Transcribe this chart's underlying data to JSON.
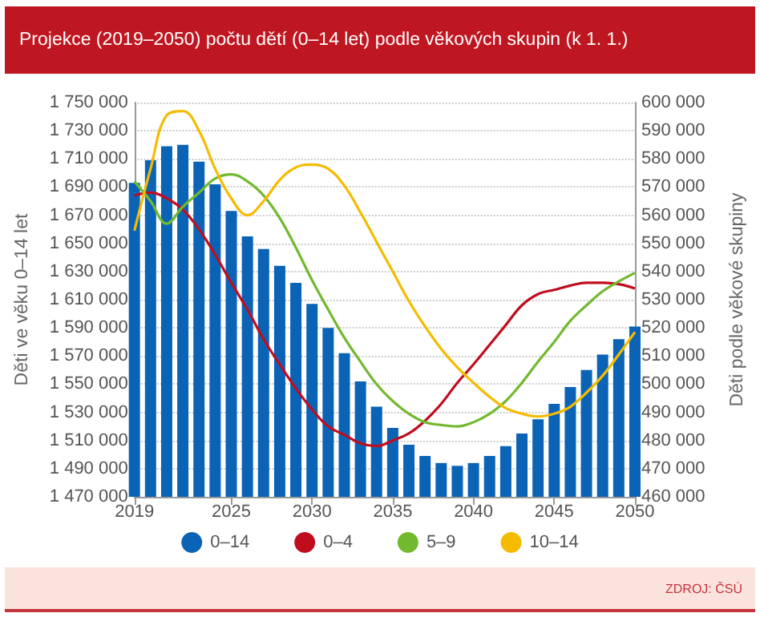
{
  "chart_data": {
    "type": "bar",
    "title": "Projekce (2019–2050) počtu dětí (0–14 let) podle věkových skupin (k 1. 1.)",
    "annotations": [
      "ZDROJ: ČSÚ"
    ],
    "ylabel": "Děti ve věku 0–14 let",
    "y2label": "Děti podle věkové skupiny",
    "x": [
      2019,
      2020,
      2021,
      2022,
      2023,
      2024,
      2025,
      2026,
      2027,
      2028,
      2029,
      2030,
      2031,
      2032,
      2033,
      2034,
      2035,
      2036,
      2037,
      2038,
      2039,
      2040,
      2041,
      2042,
      2043,
      2044,
      2045,
      2046,
      2047,
      2048,
      2049,
      2050
    ],
    "xlim": [
      2019,
      2050
    ],
    "xticks": [
      2019,
      2025,
      2030,
      2035,
      2040,
      2045,
      2050
    ],
    "ylim": [
      1470000,
      1750000
    ],
    "yticks": [
      {
        "value": 1470000,
        "label": "1 470 000"
      },
      {
        "value": 1490000,
        "label": "1 490 000"
      },
      {
        "value": 1510000,
        "label": "1 510 000"
      },
      {
        "value": 1530000,
        "label": "1 530 000"
      },
      {
        "value": 1550000,
        "label": "1 550 000"
      },
      {
        "value": 1570000,
        "label": "1 570 000"
      },
      {
        "value": 1590000,
        "label": "1 590 000"
      },
      {
        "value": 1610000,
        "label": "1 610 000"
      },
      {
        "value": 1630000,
        "label": "1 630 000"
      },
      {
        "value": 1650000,
        "label": "1 650 000"
      },
      {
        "value": 1670000,
        "label": "1 670 000"
      },
      {
        "value": 1690000,
        "label": "1 690 000"
      },
      {
        "value": 1710000,
        "label": "1 710 000"
      },
      {
        "value": 1730000,
        "label": "1 730 000"
      },
      {
        "value": 1750000,
        "label": "1 750 000"
      }
    ],
    "y2lim": [
      460000,
      600000
    ],
    "y2ticks": [
      {
        "value": 460000,
        "label": "460 000"
      },
      {
        "value": 470000,
        "label": "470 000"
      },
      {
        "value": 480000,
        "label": "480 000"
      },
      {
        "value": 490000,
        "label": "490 000"
      },
      {
        "value": 500000,
        "label": "500 000"
      },
      {
        "value": 510000,
        "label": "510 000"
      },
      {
        "value": 520000,
        "label": "520 000"
      },
      {
        "value": 530000,
        "label": "530 000"
      },
      {
        "value": 540000,
        "label": "540 000"
      },
      {
        "value": 550000,
        "label": "550 000"
      },
      {
        "value": 560000,
        "label": "560 000"
      },
      {
        "value": 570000,
        "label": "570 000"
      },
      {
        "value": 580000,
        "label": "580 000"
      },
      {
        "value": 590000,
        "label": "590 000"
      },
      {
        "value": 600000,
        "label": "600 000"
      }
    ],
    "grid": "y",
    "legend": "bottom",
    "marker": "none",
    "series": [
      {
        "name": "0–14",
        "color": "#0b63b5",
        "values": [
          1693000,
          1709000,
          1719000,
          1720000,
          1708000,
          1692000,
          1673000,
          1655000,
          1646000,
          1634000,
          1622000,
          1607000,
          1590000,
          1572000,
          1552000,
          1534000,
          1519000,
          1507000,
          1499000,
          1494000,
          1492000,
          1494000,
          1499000,
          1506000,
          1515000,
          1525000,
          1536000,
          1548000,
          1560000,
          1571000,
          1582000,
          1591000
        ]
      },
      {
        "name": "0–4",
        "type": "line",
        "axis": "y2",
        "color": "#c00d1e",
        "values": [
          567000,
          568000,
          566000,
          562000,
          555000,
          546000,
          536000,
          526500,
          516000,
          507000,
          498500,
          491000,
          485000,
          482000,
          479000,
          478000,
          480000,
          482500,
          487000,
          493000,
          500500,
          507000,
          514000,
          521000,
          528000,
          532000,
          533500,
          535000,
          536000,
          536000,
          535500,
          534000
        ]
      },
      {
        "name": "5–9",
        "type": "line",
        "axis": "y2",
        "color": "#72b92f",
        "values": [
          572000,
          565000,
          557000,
          563000,
          568000,
          573000,
          574500,
          572000,
          567000,
          559000,
          548500,
          537000,
          526500,
          516500,
          508000,
          500000,
          494000,
          489500,
          486500,
          485500,
          485000,
          486500,
          489500,
          494000,
          500500,
          508000,
          515000,
          522500,
          528000,
          533000,
          536500,
          539500
        ]
      },
      {
        "name": "10–14",
        "type": "line",
        "axis": "y2",
        "color": "#f5bb00",
        "values": [
          554500,
          576500,
          595500,
          597000,
          590000,
          576500,
          566000,
          560000,
          565000,
          572500,
          577000,
          578000,
          576500,
          570500,
          561000,
          550500,
          540000,
          529500,
          520500,
          512500,
          506000,
          500500,
          495500,
          491500,
          489500,
          488500,
          489500,
          492000,
          497000,
          503000,
          510500,
          518500
        ]
      }
    ]
  }
}
